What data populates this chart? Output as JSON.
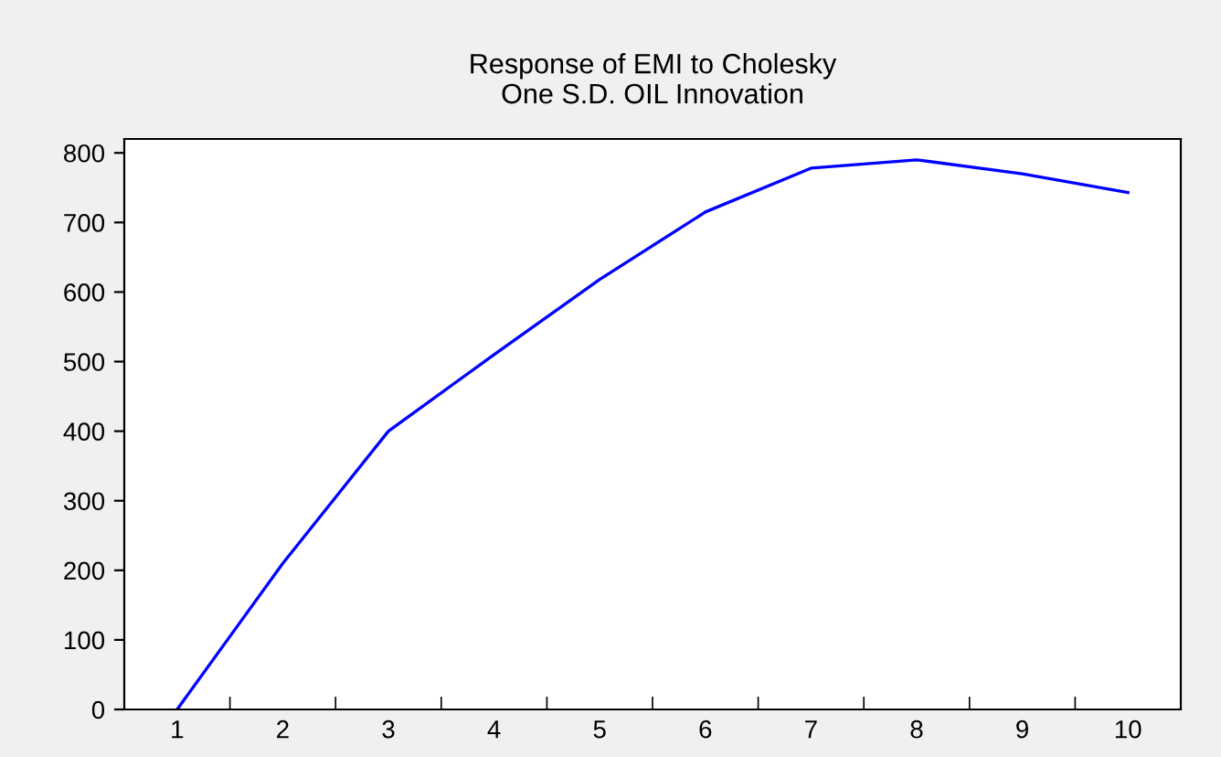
{
  "chart_data": {
    "type": "line",
    "title": "Response of EMI to Cholesky\nOne S.D. OIL Innovation",
    "categories": [
      "1",
      "2",
      "3",
      "4",
      "5",
      "6",
      "7",
      "8",
      "9",
      "10"
    ],
    "series": [
      {
        "color": "#0000ff",
        "values": [
          0,
          210,
          400,
          510,
          618,
          715,
          778,
          790,
          770,
          743
        ]
      }
    ],
    "ylim": [
      0,
      820
    ],
    "yticks": [
      0,
      100,
      200,
      300,
      400,
      500,
      600,
      700,
      800
    ],
    "grid": false,
    "marker": "none",
    "line_style": "solid"
  }
}
